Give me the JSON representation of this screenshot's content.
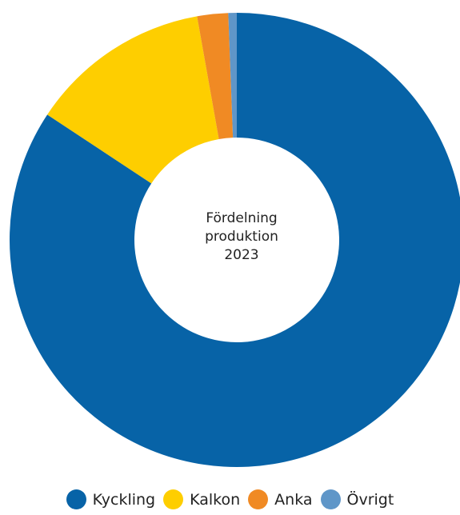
{
  "chart_data": {
    "type": "pie",
    "donut": true,
    "center_label": [
      "Fördelning",
      "produktion",
      "2023"
    ],
    "categories": [
      "Kyckling",
      "Kalkon",
      "Anka",
      "Övrigt"
    ],
    "values": [
      84.3,
      12.9,
      2.2,
      0.6
    ],
    "colors": [
      "#0763a7",
      "#fece00",
      "#f08a24",
      "#5f96c8"
    ],
    "legend_position": "bottom"
  }
}
